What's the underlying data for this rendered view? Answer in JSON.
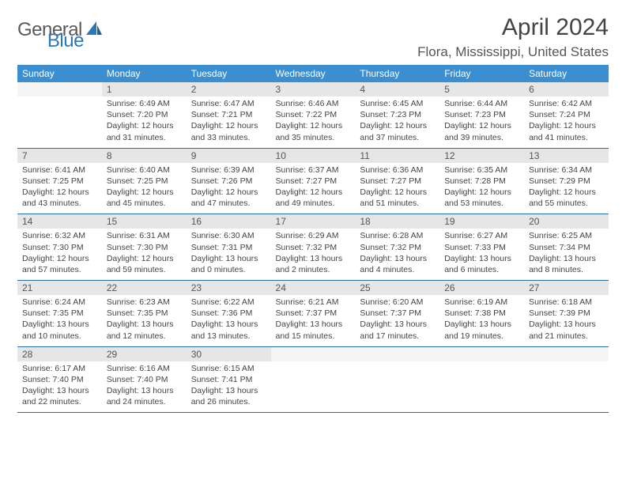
{
  "logo": {
    "text1": "General",
    "text2": "Blue"
  },
  "title": "April 2024",
  "location": "Flora, Mississippi, United States",
  "colors": {
    "header_bg": "#3b8fd0",
    "header_text": "#ffffff",
    "daynum_bg": "#e6e6e6",
    "rule": "#2a6ea8",
    "text": "#444444",
    "logo_gray": "#5a5a5a",
    "logo_blue": "#2a78b8"
  },
  "typography": {
    "title_fontsize": 30,
    "location_fontsize": 17,
    "header_fontsize": 12,
    "cell_fontsize": 10.5
  },
  "day_names": [
    "Sunday",
    "Monday",
    "Tuesday",
    "Wednesday",
    "Thursday",
    "Friday",
    "Saturday"
  ],
  "weeks": [
    [
      null,
      {
        "n": "1",
        "sr": "6:49 AM",
        "ss": "7:20 PM",
        "dl": "12 hours and 31 minutes."
      },
      {
        "n": "2",
        "sr": "6:47 AM",
        "ss": "7:21 PM",
        "dl": "12 hours and 33 minutes."
      },
      {
        "n": "3",
        "sr": "6:46 AM",
        "ss": "7:22 PM",
        "dl": "12 hours and 35 minutes."
      },
      {
        "n": "4",
        "sr": "6:45 AM",
        "ss": "7:23 PM",
        "dl": "12 hours and 37 minutes."
      },
      {
        "n": "5",
        "sr": "6:44 AM",
        "ss": "7:23 PM",
        "dl": "12 hours and 39 minutes."
      },
      {
        "n": "6",
        "sr": "6:42 AM",
        "ss": "7:24 PM",
        "dl": "12 hours and 41 minutes."
      }
    ],
    [
      {
        "n": "7",
        "sr": "6:41 AM",
        "ss": "7:25 PM",
        "dl": "12 hours and 43 minutes."
      },
      {
        "n": "8",
        "sr": "6:40 AM",
        "ss": "7:25 PM",
        "dl": "12 hours and 45 minutes."
      },
      {
        "n": "9",
        "sr": "6:39 AM",
        "ss": "7:26 PM",
        "dl": "12 hours and 47 minutes."
      },
      {
        "n": "10",
        "sr": "6:37 AM",
        "ss": "7:27 PM",
        "dl": "12 hours and 49 minutes."
      },
      {
        "n": "11",
        "sr": "6:36 AM",
        "ss": "7:27 PM",
        "dl": "12 hours and 51 minutes."
      },
      {
        "n": "12",
        "sr": "6:35 AM",
        "ss": "7:28 PM",
        "dl": "12 hours and 53 minutes."
      },
      {
        "n": "13",
        "sr": "6:34 AM",
        "ss": "7:29 PM",
        "dl": "12 hours and 55 minutes."
      }
    ],
    [
      {
        "n": "14",
        "sr": "6:32 AM",
        "ss": "7:30 PM",
        "dl": "12 hours and 57 minutes."
      },
      {
        "n": "15",
        "sr": "6:31 AM",
        "ss": "7:30 PM",
        "dl": "12 hours and 59 minutes."
      },
      {
        "n": "16",
        "sr": "6:30 AM",
        "ss": "7:31 PM",
        "dl": "13 hours and 0 minutes."
      },
      {
        "n": "17",
        "sr": "6:29 AM",
        "ss": "7:32 PM",
        "dl": "13 hours and 2 minutes."
      },
      {
        "n": "18",
        "sr": "6:28 AM",
        "ss": "7:32 PM",
        "dl": "13 hours and 4 minutes."
      },
      {
        "n": "19",
        "sr": "6:27 AM",
        "ss": "7:33 PM",
        "dl": "13 hours and 6 minutes."
      },
      {
        "n": "20",
        "sr": "6:25 AM",
        "ss": "7:34 PM",
        "dl": "13 hours and 8 minutes."
      }
    ],
    [
      {
        "n": "21",
        "sr": "6:24 AM",
        "ss": "7:35 PM",
        "dl": "13 hours and 10 minutes."
      },
      {
        "n": "22",
        "sr": "6:23 AM",
        "ss": "7:35 PM",
        "dl": "13 hours and 12 minutes."
      },
      {
        "n": "23",
        "sr": "6:22 AM",
        "ss": "7:36 PM",
        "dl": "13 hours and 13 minutes."
      },
      {
        "n": "24",
        "sr": "6:21 AM",
        "ss": "7:37 PM",
        "dl": "13 hours and 15 minutes."
      },
      {
        "n": "25",
        "sr": "6:20 AM",
        "ss": "7:37 PM",
        "dl": "13 hours and 17 minutes."
      },
      {
        "n": "26",
        "sr": "6:19 AM",
        "ss": "7:38 PM",
        "dl": "13 hours and 19 minutes."
      },
      {
        "n": "27",
        "sr": "6:18 AM",
        "ss": "7:39 PM",
        "dl": "13 hours and 21 minutes."
      }
    ],
    [
      {
        "n": "28",
        "sr": "6:17 AM",
        "ss": "7:40 PM",
        "dl": "13 hours and 22 minutes."
      },
      {
        "n": "29",
        "sr": "6:16 AM",
        "ss": "7:40 PM",
        "dl": "13 hours and 24 minutes."
      },
      {
        "n": "30",
        "sr": "6:15 AM",
        "ss": "7:41 PM",
        "dl": "13 hours and 26 minutes."
      },
      null,
      null,
      null,
      null
    ]
  ]
}
